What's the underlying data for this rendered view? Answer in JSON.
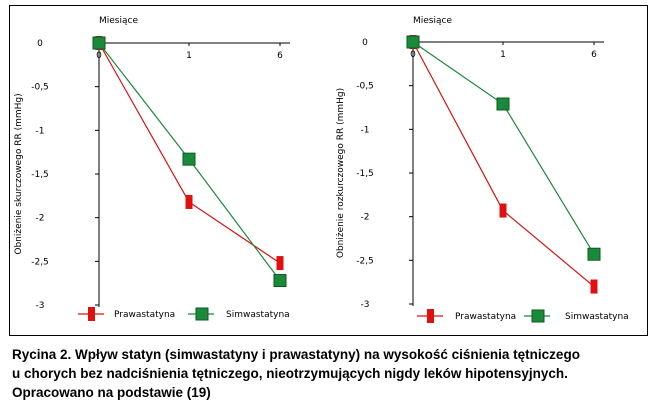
{
  "chart_data": [
    {
      "type": "line",
      "xlabel": "Miesiące",
      "ylabel": "Obniżenie skurczowego RR (mmHg)",
      "x": [
        0,
        1,
        6
      ],
      "x_tick_labels": [
        "0",
        "1",
        "6"
      ],
      "y_ticks": [
        0,
        -0.5,
        -1,
        -1.5,
        -2,
        -2.5,
        -3
      ],
      "y_tick_labels": [
        "0",
        "-0,5",
        "-1",
        "-1,5",
        "-2",
        "-2,5",
        "-3"
      ],
      "ylim": [
        -3,
        0
      ],
      "series": [
        {
          "name": "Prawastatyna",
          "color": "#e01010",
          "marker": "bar",
          "values": [
            0,
            -1.82,
            -2.52
          ]
        },
        {
          "name": "Simwastatyna",
          "color": "#1a8a3a",
          "marker": "square",
          "values": [
            0,
            -1.33,
            -2.72
          ]
        }
      ],
      "legend": "bottom"
    },
    {
      "type": "line",
      "xlabel": "Miesiące",
      "ylabel": "Obniżenie rozkurczowego RR (mmHg)",
      "x": [
        0,
        1,
        6
      ],
      "x_tick_labels": [
        "0",
        "1",
        "6"
      ],
      "y_ticks": [
        0,
        -0.5,
        -1,
        -1.5,
        -2,
        -2.5,
        -3
      ],
      "y_tick_labels": [
        "0",
        "-0,5",
        "-1",
        "-1,5",
        "-2",
        "-2,5",
        "-3"
      ],
      "ylim": [
        -3,
        0
      ],
      "series": [
        {
          "name": "Prawastatyna",
          "color": "#e01010",
          "marker": "bar",
          "values": [
            0,
            -1.93,
            -2.8
          ]
        },
        {
          "name": "Simwastatyna",
          "color": "#1a8a3a",
          "marker": "square",
          "values": [
            0,
            -0.71,
            -2.43
          ]
        }
      ],
      "legend": "bottom"
    }
  ],
  "caption": {
    "line1": "Rycina 2. Wpływ statyn (simwastatyny i prawastatyny) na wysokość ciśnienia tętniczego",
    "line2": "u chorych bez nadciśnienia tętniczego, nieotrzymujących nigdy leków hipotensyjnych.",
    "line3": "Opracowano na podstawie (19)"
  }
}
